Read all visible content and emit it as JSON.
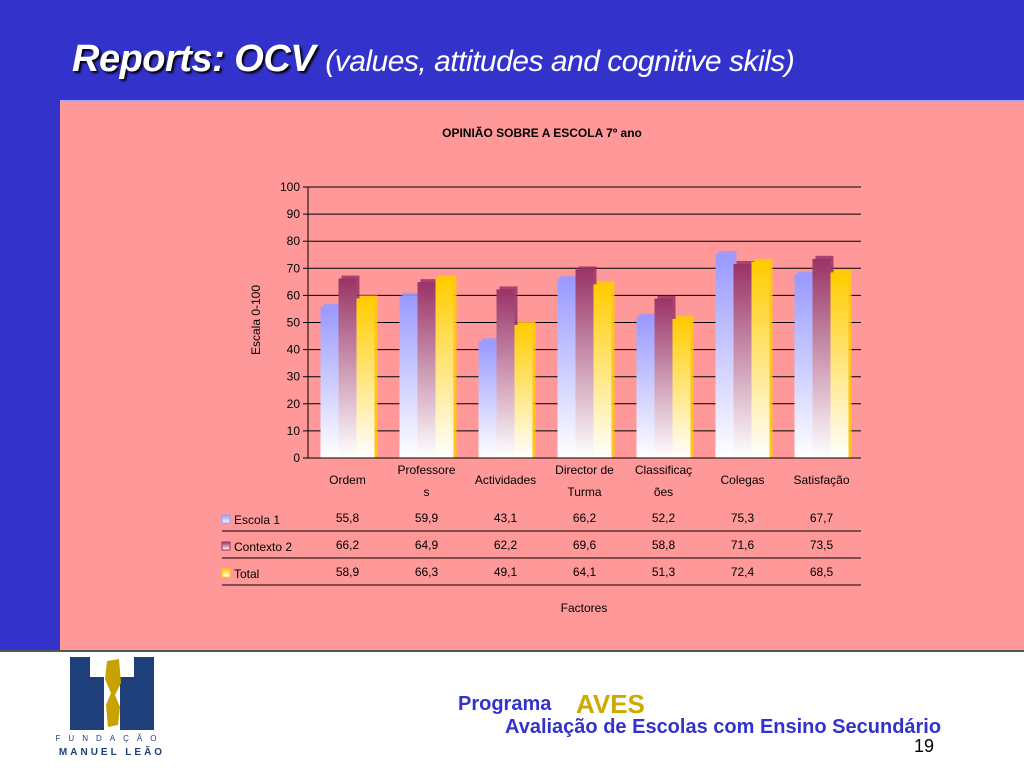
{
  "header": {
    "title_main": "Reports: OCV",
    "title_sub": "(values, attitudes and cognitive skils)"
  },
  "chart_data": {
    "type": "bar",
    "title": "OPINIÃO SOBRE A ESCOLA 7º ano",
    "ylabel": "Escala 0-100",
    "xlabel": "Factores",
    "ylim": [
      0,
      100
    ],
    "yticks": [
      "0",
      "10",
      "20",
      "30",
      "40",
      "50",
      "60",
      "70",
      "80",
      "90",
      "100"
    ],
    "grid": true,
    "legend": "table-left",
    "categories": [
      "Ordem",
      "Professores",
      "Actividades",
      "Director de Turma",
      "Classificações",
      "Colegas",
      "Satisfação"
    ],
    "category_lines": [
      [
        "Ordem"
      ],
      [
        "Professore",
        "s"
      ],
      [
        "Actividades"
      ],
      [
        "Director de",
        "Turma"
      ],
      [
        "Classificaç",
        "ões"
      ],
      [
        "Colegas"
      ],
      [
        "Satisfação"
      ]
    ],
    "series": [
      {
        "name": "Escola 1",
        "color": "#9999ff",
        "values": [
          55.8,
          59.9,
          43.1,
          66.2,
          52.2,
          75.3,
          67.7
        ],
        "labels": [
          "55,8",
          "59,9",
          "43,1",
          "66,2",
          "52,2",
          "75,3",
          "67,7"
        ]
      },
      {
        "name": "Contexto 2",
        "color": "#993366",
        "values": [
          66.2,
          64.9,
          62.2,
          69.6,
          58.8,
          71.6,
          73.5
        ],
        "labels": [
          "66,2",
          "64,9",
          "62,2",
          "69,6",
          "58,8",
          "71,6",
          "73,5"
        ]
      },
      {
        "name": "Total",
        "color": "#ffcc00",
        "values": [
          58.9,
          66.3,
          49.1,
          64.1,
          51.3,
          72.4,
          68.5
        ],
        "labels": [
          "58,9",
          "66,3",
          "49,1",
          "64,1",
          "51,3",
          "72,4",
          "68,5"
        ]
      }
    ]
  },
  "footer": {
    "logo_line1": "FUNDAÇÃO",
    "logo_line2": "MANUEL LEÃO",
    "programa": "Programa",
    "aves": "AVES",
    "subtitle": "Avaliação de Escolas com Ensino Secundário",
    "page_number": "19"
  },
  "colors": {
    "brand_blue": "#3333cc",
    "content_bg": "#ff9999",
    "logo_navy": "#1f3f7a",
    "logo_gold": "#c8a200"
  }
}
